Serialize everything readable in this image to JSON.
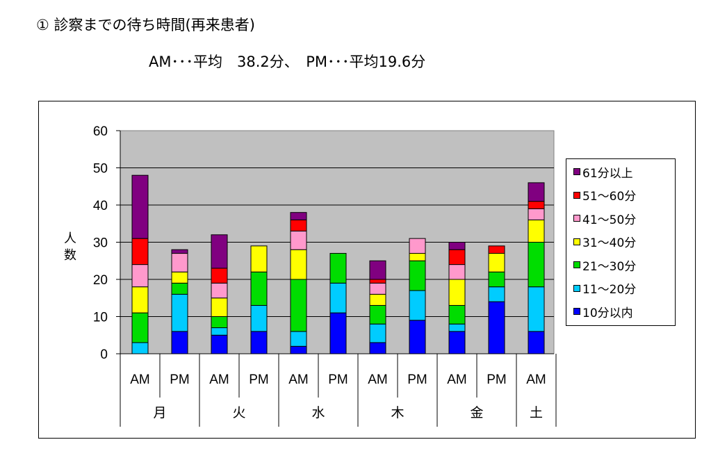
{
  "heading": "① 診察までの待ち時間(再来患者)",
  "subheading": "AM･･･平均　38.2分、　PM･･･平均19.6分",
  "chart_data": {
    "type": "bar",
    "stacked": true,
    "ylabel": "人数",
    "ylim": [
      0,
      60
    ],
    "yticks": [
      0,
      10,
      20,
      30,
      40,
      50,
      60
    ],
    "grid": true,
    "legend_position": "right",
    "categories": [
      "AM",
      "PM",
      "AM",
      "PM",
      "AM",
      "PM",
      "AM",
      "PM",
      "AM",
      "PM",
      "AM"
    ],
    "groups": [
      {
        "label": "月",
        "span": 2
      },
      {
        "label": "火",
        "span": 2
      },
      {
        "label": "水",
        "span": 2
      },
      {
        "label": "木",
        "span": 2
      },
      {
        "label": "金",
        "span": 2
      },
      {
        "label": "土",
        "span": 1
      }
    ],
    "series": [
      {
        "name": "10分以内",
        "color": "#0000ff",
        "values": [
          0,
          6,
          5,
          6,
          2,
          11,
          3,
          9,
          6,
          14,
          6
        ]
      },
      {
        "name": "11～20分",
        "color": "#00ccff",
        "values": [
          3,
          10,
          2,
          7,
          4,
          8,
          5,
          8,
          2,
          4,
          12
        ]
      },
      {
        "name": "21～30分",
        "color": "#00dd00",
        "values": [
          8,
          3,
          3,
          9,
          14,
          8,
          5,
          8,
          5,
          4,
          12
        ]
      },
      {
        "name": "31～40分",
        "color": "#ffff00",
        "values": [
          7,
          3,
          5,
          7,
          8,
          0,
          3,
          2,
          7,
          5,
          6
        ]
      },
      {
        "name": "41～50分",
        "color": "#ff99cc",
        "values": [
          6,
          5,
          4,
          0,
          5,
          0,
          3,
          4,
          4,
          0,
          3
        ]
      },
      {
        "name": "51～60分",
        "color": "#ff0000",
        "values": [
          7,
          0,
          4,
          0,
          3,
          0,
          1,
          0,
          4,
          2,
          2
        ]
      },
      {
        "name": "61分以上",
        "color": "#800080",
        "values": [
          17,
          1,
          9,
          0,
          2,
          0,
          5,
          0,
          2,
          0,
          5
        ]
      }
    ],
    "plot_background": "#c0c0c0"
  }
}
